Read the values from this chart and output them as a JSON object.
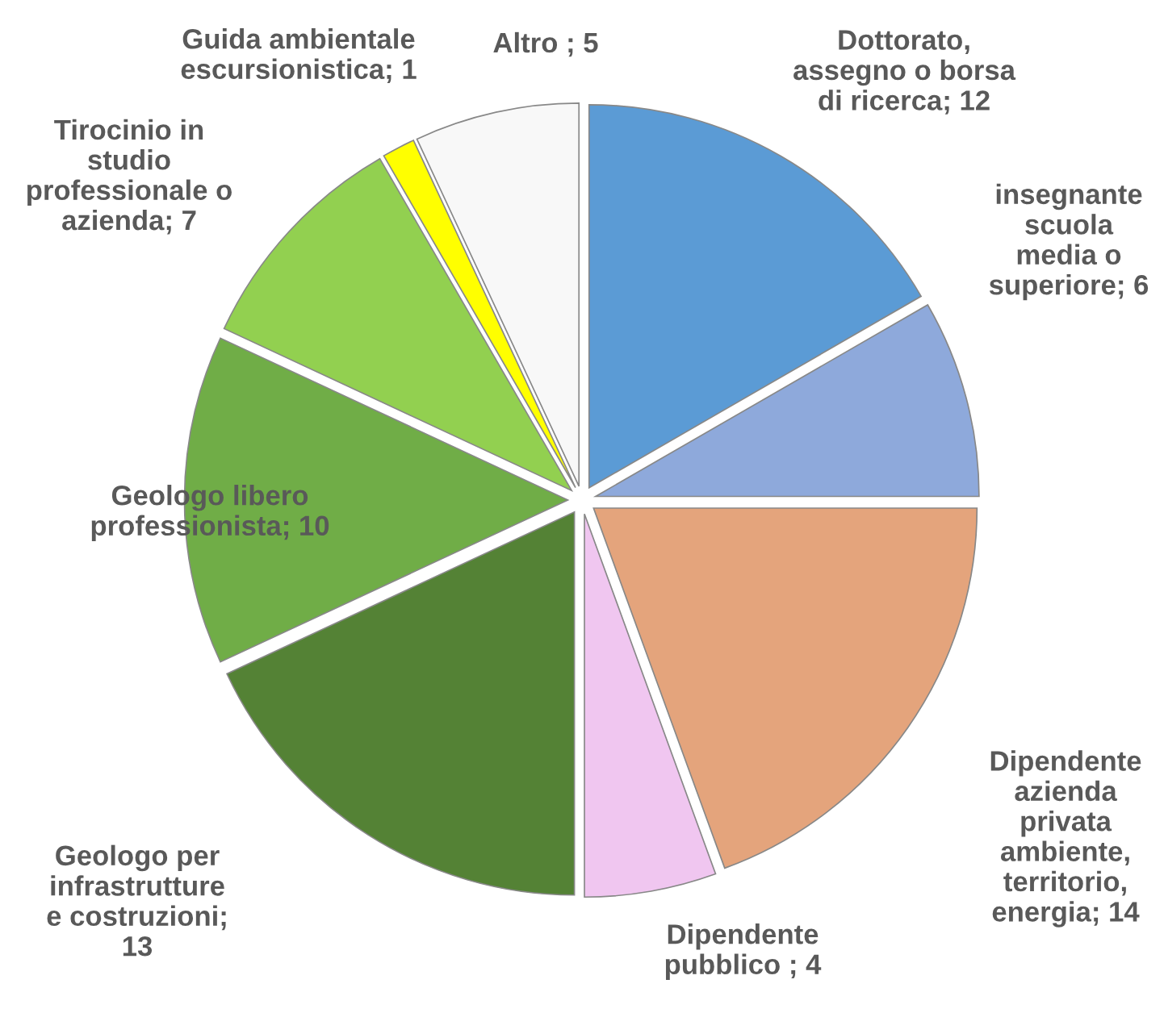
{
  "chart_data": {
    "type": "pie",
    "categories": [
      "Dottorato,\nassegno o borsa\ndi ricerca; 12",
      "insegnante\nscuola\nmedia o\nsuperiore; 6",
      "Dipendente\nazienda\nprivata\nambiente,\nterritorio,\nenergia; 14",
      "Dipendente\npubblico ; 4",
      "Geologo per\ninfrastrutture\ne costruzioni;\n13",
      "Geologo libero\nprofessionista; 10",
      "Tirocinio in\nstudio\nprofessionale o\nazienda; 7",
      "Guida ambientale\nescursionistica; 1",
      "Altro ; 5"
    ],
    "values": [
      12,
      6,
      14,
      4,
      13,
      10,
      7,
      1,
      5
    ],
    "colors": [
      "#5b9bd5",
      "#8ea9db",
      "#e4a47c",
      "#f0c6f0",
      "#548235",
      "#70ad47",
      "#92d050",
      "#ffff00",
      "#f8f8f8"
    ]
  }
}
